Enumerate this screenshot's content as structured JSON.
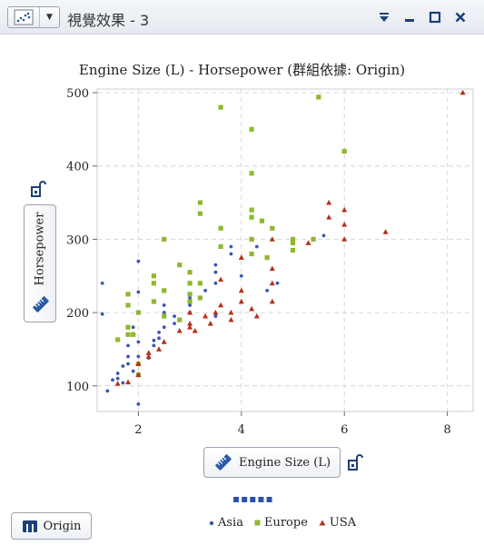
{
  "window": {
    "title": "視覺效果 - 3",
    "controls": [
      "menu",
      "minimize",
      "maximize",
      "close"
    ]
  },
  "chart_data": {
    "type": "scatter",
    "title": "Engine Size (L) - Horsepower (群組依據: Origin)",
    "xlabel": "Engine Size (L)",
    "ylabel": "Horsepower",
    "xlim": [
      1.2,
      8.5
    ],
    "ylim": [
      65,
      505
    ],
    "x_ticks": [
      2,
      4,
      6,
      8
    ],
    "y_ticks": [
      100,
      200,
      300,
      400,
      500
    ],
    "grid": true,
    "legend": "bottom",
    "series": [
      {
        "name": "Asia",
        "color": "#3b56b5",
        "marker": "circle",
        "points": [
          [
            1.3,
            240
          ],
          [
            1.3,
            198
          ],
          [
            1.4,
            93
          ],
          [
            1.5,
            108
          ],
          [
            1.6,
            110
          ],
          [
            1.6,
            117
          ],
          [
            1.7,
            127
          ],
          [
            1.7,
            104
          ],
          [
            1.8,
            130
          ],
          [
            1.8,
            140
          ],
          [
            1.8,
            155
          ],
          [
            1.8,
            170
          ],
          [
            1.9,
            120
          ],
          [
            1.9,
            180
          ],
          [
            2.0,
            75
          ],
          [
            2.0,
            140
          ],
          [
            2.0,
            160
          ],
          [
            2.0,
            228
          ],
          [
            2.0,
            270
          ],
          [
            2.2,
            138
          ],
          [
            2.3,
            155
          ],
          [
            2.3,
            162
          ],
          [
            2.4,
            165
          ],
          [
            2.4,
            173
          ],
          [
            2.5,
            180
          ],
          [
            2.5,
            200
          ],
          [
            2.5,
            210
          ],
          [
            2.7,
            195
          ],
          [
            2.7,
            185
          ],
          [
            3.0,
            200
          ],
          [
            3.0,
            210
          ],
          [
            3.0,
            220
          ],
          [
            3.3,
            230
          ],
          [
            3.5,
            240
          ],
          [
            3.5,
            265
          ],
          [
            3.5,
            255
          ],
          [
            3.5,
            195
          ],
          [
            3.8,
            280
          ],
          [
            3.8,
            290
          ],
          [
            4.0,
            250
          ],
          [
            4.2,
            300
          ],
          [
            4.3,
            290
          ],
          [
            4.5,
            230
          ],
          [
            4.7,
            240
          ],
          [
            5.6,
            305
          ]
        ]
      },
      {
        "name": "Europe",
        "color": "#8fb82e",
        "marker": "square",
        "points": [
          [
            1.6,
            163
          ],
          [
            1.8,
            210
          ],
          [
            1.8,
            225
          ],
          [
            1.8,
            180
          ],
          [
            1.8,
            170
          ],
          [
            1.9,
            170
          ],
          [
            2.0,
            115
          ],
          [
            2.0,
            200
          ],
          [
            2.0,
            130
          ],
          [
            2.3,
            250
          ],
          [
            2.3,
            240
          ],
          [
            2.3,
            215
          ],
          [
            2.5,
            300
          ],
          [
            2.5,
            230
          ],
          [
            2.5,
            195
          ],
          [
            2.8,
            190
          ],
          [
            2.8,
            265
          ],
          [
            3.0,
            225
          ],
          [
            3.0,
            215
          ],
          [
            3.0,
            240
          ],
          [
            3.0,
            255
          ],
          [
            3.2,
            350
          ],
          [
            3.2,
            335
          ],
          [
            3.2,
            240
          ],
          [
            3.2,
            220
          ],
          [
            3.6,
            480
          ],
          [
            3.6,
            315
          ],
          [
            3.6,
            290
          ],
          [
            4.2,
            450
          ],
          [
            4.2,
            390
          ],
          [
            4.2,
            340
          ],
          [
            4.2,
            330
          ],
          [
            4.2,
            300
          ],
          [
            4.2,
            280
          ],
          [
            4.4,
            325
          ],
          [
            4.5,
            275
          ],
          [
            4.6,
            315
          ],
          [
            5.0,
            300
          ],
          [
            5.0,
            295
          ],
          [
            5.0,
            285
          ],
          [
            5.4,
            300
          ],
          [
            5.5,
            494
          ],
          [
            6.0,
            420
          ]
        ]
      },
      {
        "name": "USA",
        "color": "#b5301a",
        "marker": "triangle",
        "points": [
          [
            1.6,
            103
          ],
          [
            1.8,
            105
          ],
          [
            2.0,
            115
          ],
          [
            2.0,
            130
          ],
          [
            2.2,
            140
          ],
          [
            2.2,
            145
          ],
          [
            2.4,
            150
          ],
          [
            2.5,
            160
          ],
          [
            2.8,
            175
          ],
          [
            3.0,
            180
          ],
          [
            3.0,
            185
          ],
          [
            3.0,
            200
          ],
          [
            3.1,
            175
          ],
          [
            3.3,
            195
          ],
          [
            3.4,
            185
          ],
          [
            3.5,
            200
          ],
          [
            3.6,
            210
          ],
          [
            3.6,
            245
          ],
          [
            3.8,
            200
          ],
          [
            3.8,
            190
          ],
          [
            4.0,
            215
          ],
          [
            4.0,
            230
          ],
          [
            4.0,
            275
          ],
          [
            4.2,
            205
          ],
          [
            4.3,
            195
          ],
          [
            4.6,
            215
          ],
          [
            4.6,
            240
          ],
          [
            4.6,
            260
          ],
          [
            4.6,
            300
          ],
          [
            5.3,
            295
          ],
          [
            5.7,
            350
          ],
          [
            5.7,
            330
          ],
          [
            6.0,
            340
          ],
          [
            6.0,
            320
          ],
          [
            6.0,
            300
          ],
          [
            6.8,
            310
          ],
          [
            8.3,
            500
          ]
        ]
      }
    ]
  },
  "axis_buttons": {
    "y_label": "Horsepower",
    "x_label": "Engine Size (L)",
    "group_label": "Origin"
  },
  "legend": {
    "items": [
      "Asia",
      "Europe",
      "USA"
    ],
    "indicator": "▪▪▪▪▪"
  },
  "colors": {
    "asia": "#3b56b5",
    "europe": "#8fb82e",
    "usa": "#b5301a",
    "accent": "#1d3f7a"
  }
}
